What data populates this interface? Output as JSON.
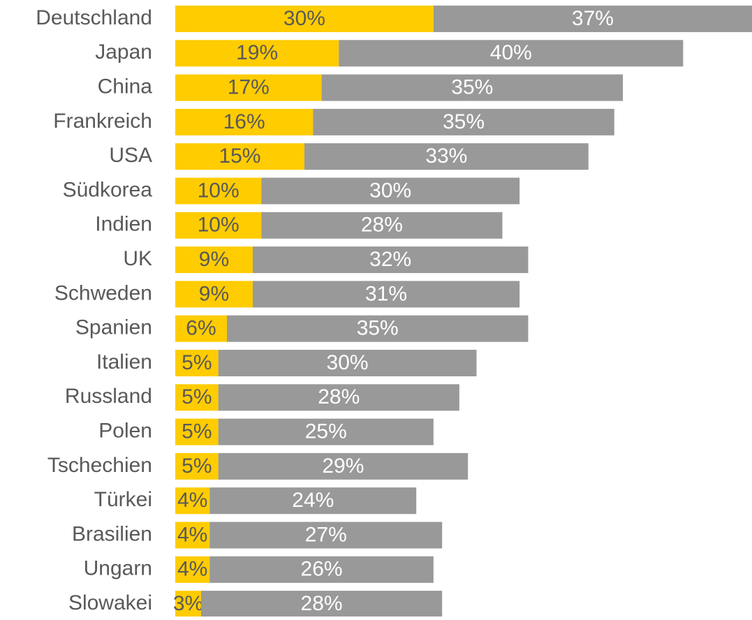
{
  "chart_data": {
    "type": "stacked-bar-horizontal",
    "categories": [
      "Deutschland",
      "Japan",
      "China",
      "Frankreich",
      "USA",
      "Südkorea",
      "Indien",
      "UK",
      "Schweden",
      "Spanien",
      "Italien",
      "Russland",
      "Polen",
      "Tschechien",
      "Türkei",
      "Brasilien",
      "Ungarn",
      "Slowakei"
    ],
    "series": [
      {
        "color": "#ffcc00",
        "label_color": "#595959",
        "values": [
          30,
          19,
          17,
          16,
          15,
          10,
          10,
          9,
          9,
          6,
          5,
          5,
          5,
          5,
          4,
          4,
          4,
          3
        ],
        "value_labels": [
          "30%",
          "19%",
          "17%",
          "16%",
          "15%",
          "10%",
          "10%",
          "9%",
          "9%",
          "6%",
          "5%",
          "5%",
          "5%",
          "5%",
          "4%",
          "4%",
          "4%",
          "3%"
        ]
      },
      {
        "color": "#999999",
        "label_color": "#ffffff",
        "values": [
          37,
          40,
          35,
          35,
          33,
          30,
          28,
          32,
          31,
          35,
          30,
          28,
          25,
          29,
          24,
          27,
          26,
          28
        ],
        "value_labels": [
          "37%",
          "40%",
          "35%",
          "35%",
          "33%",
          "30%",
          "28%",
          "32%",
          "31%",
          "35%",
          "30%",
          "28%",
          "25%",
          "29%",
          "24%",
          "27%",
          "26%",
          "28%"
        ]
      }
    ]
  }
}
